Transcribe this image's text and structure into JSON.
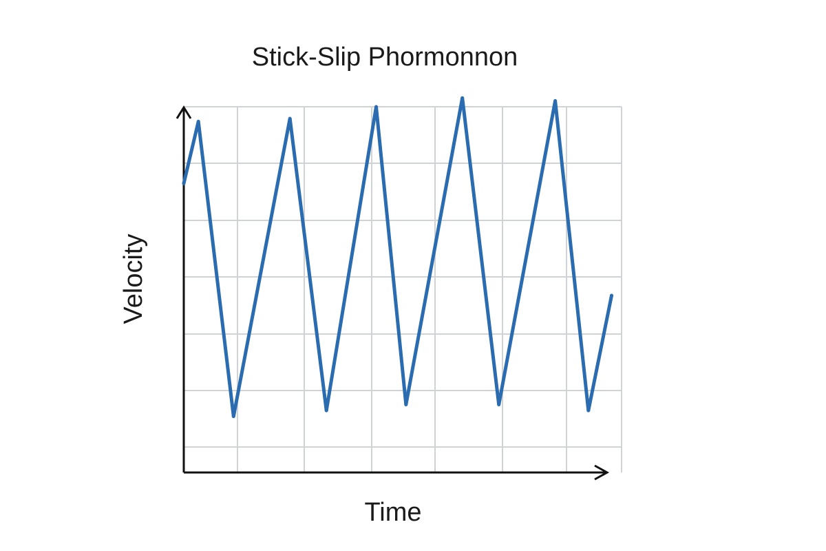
{
  "chart_data": {
    "type": "line",
    "title": "Stick-Slip Phormonnon",
    "xlabel": "Time",
    "ylabel": "Velocity",
    "grid": true,
    "xlim": [
      0,
      6.6
    ],
    "ylim": [
      0,
      6.2
    ],
    "series": [
      {
        "color": "#2b6cb0",
        "points": [
          [
            0.0,
            4.9
          ],
          [
            0.22,
            5.95
          ],
          [
            0.75,
            0.95
          ],
          [
            1.6,
            6.0
          ],
          [
            2.15,
            1.05
          ],
          [
            2.9,
            6.2
          ],
          [
            3.35,
            1.15
          ],
          [
            4.2,
            6.35
          ],
          [
            4.75,
            1.15
          ],
          [
            5.6,
            6.3
          ],
          [
            6.1,
            1.05
          ],
          [
            6.45,
            3.0
          ]
        ]
      }
    ]
  }
}
